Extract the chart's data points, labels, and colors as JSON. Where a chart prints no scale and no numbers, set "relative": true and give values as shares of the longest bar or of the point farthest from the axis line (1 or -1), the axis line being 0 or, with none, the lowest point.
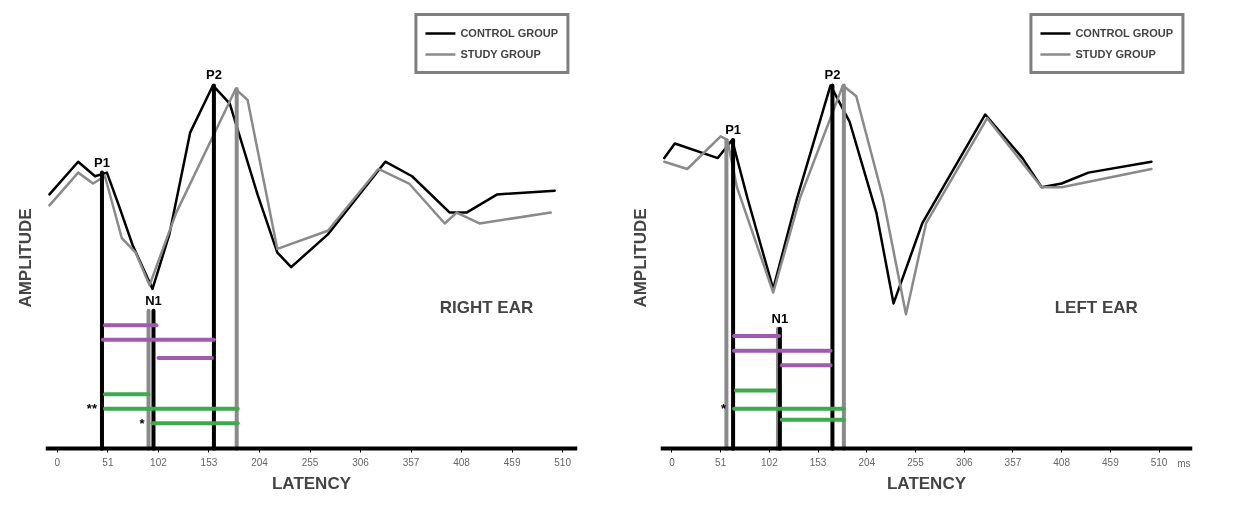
{
  "chart_data": [
    {
      "type": "line",
      "relative": true,
      "title": "RIGHT EAR",
      "xlabel": "LATENCY",
      "ylabel": "AMPLITUDE",
      "legend": "top right",
      "xlim": [
        -12,
        525
      ],
      "xticks": [
        0,
        51,
        102,
        153,
        204,
        255,
        306,
        357,
        408,
        459,
        510
      ],
      "series": [
        {
          "name": "CONTROL GROUP",
          "color": "#000000",
          "x": [
            -8,
            21,
            38,
            50,
            62,
            76,
            96,
            113,
            134,
            157,
            174,
            202,
            222,
            236,
            273,
            331,
            358,
            396,
            413,
            444,
            502
          ],
          "values": [
            0.7,
            0.79,
            0.75,
            0.76,
            0.67,
            0.56,
            0.44,
            0.59,
            0.87,
            1.0,
            0.95,
            0.7,
            0.54,
            0.5,
            0.59,
            0.79,
            0.75,
            0.65,
            0.65,
            0.7,
            0.71
          ]
        },
        {
          "name": "STUDY GROUP",
          "color": "#8a8a8a",
          "x": [
            -8,
            21,
            36,
            48,
            65,
            79,
            93,
            120,
            180,
            192,
            222,
            273,
            324,
            355,
            391,
            403,
            426,
            498
          ],
          "values": [
            0.67,
            0.76,
            0.73,
            0.75,
            0.58,
            0.54,
            0.45,
            0.65,
            0.99,
            0.96,
            0.55,
            0.6,
            0.77,
            0.73,
            0.62,
            0.65,
            0.62,
            0.65
          ]
        },
        {
          "color": "#000000",
          "x": [
            45,
            45
          ],
          "values": [
            0,
            0.76
          ]
        },
        {
          "color": "#8a8a8a",
          "x": [
            92,
            92
          ],
          "values": [
            0,
            0.38
          ]
        },
        {
          "color": "#000000",
          "x": [
            97,
            97
          ],
          "values": [
            0,
            0.38
          ]
        },
        {
          "color": "#000000",
          "x": [
            158,
            158
          ],
          "values": [
            0,
            1.0
          ]
        },
        {
          "color": "#8a8a8a",
          "x": [
            181,
            181
          ],
          "values": [
            0,
            0.99
          ]
        },
        {
          "color": "#a05ab0",
          "x": [
            48,
            100
          ],
          "values": [
            0.34,
            0.34
          ]
        },
        {
          "color": "#a05ab0",
          "x": [
            46,
            158
          ],
          "values": [
            0.3,
            0.3
          ]
        },
        {
          "color": "#a05ab0",
          "x": [
            102,
            156
          ],
          "values": [
            0.25,
            0.25
          ]
        },
        {
          "color": "#3daa50",
          "x": [
            48,
            92
          ],
          "values": [
            0.15,
            0.15
          ]
        },
        {
          "color": "#3daa50",
          "x": [
            48,
            182
          ],
          "values": [
            0.11,
            0.11
          ]
        },
        {
          "color": "#3daa50",
          "x": [
            96,
            182
          ],
          "values": [
            0.07,
            0.07
          ]
        }
      ],
      "annotations": [
        {
          "text": "P1",
          "x": 45,
          "y": 0.76
        },
        {
          "text": "N1",
          "x": 97,
          "y": 0.38
        },
        {
          "text": "P2",
          "x": 158,
          "y": 1.0
        },
        {
          "text": "**",
          "x": 48,
          "y": 0.11
        },
        {
          "text": "*",
          "x": 96,
          "y": 0.07
        }
      ]
    },
    {
      "type": "line",
      "relative": true,
      "title": "LEFT EAR",
      "xlabel": "LATENCY",
      "ylabel": "AMPLITUDE",
      "legend": "top right",
      "xlim": [
        -12,
        545
      ],
      "xticks": [
        0,
        51,
        102,
        153,
        204,
        255,
        306,
        357,
        408,
        459,
        510
      ],
      "series": [
        {
          "name": "CONTROL GROUP",
          "color": "#000000",
          "x": [
            -8,
            3,
            48,
            63,
            79,
            106,
            131,
            166,
            186,
            214,
            232,
            262,
            328,
            367,
            387,
            408,
            436,
            502
          ],
          "values": [
            0.8,
            0.84,
            0.8,
            0.85,
            0.69,
            0.44,
            0.69,
            1.0,
            0.9,
            0.65,
            0.4,
            0.62,
            0.92,
            0.8,
            0.72,
            0.73,
            0.76,
            0.79
          ]
        },
        {
          "name": "STUDY GROUP",
          "color": "#8a8a8a",
          "x": [
            -8,
            16,
            51,
            58,
            68,
            106,
            134,
            179,
            193,
            221,
            245,
            266,
            330,
            387,
            408,
            502
          ],
          "values": [
            0.79,
            0.77,
            0.86,
            0.85,
            0.72,
            0.43,
            0.69,
            1.0,
            0.97,
            0.69,
            0.37,
            0.62,
            0.91,
            0.72,
            0.72,
            0.77
          ]
        },
        {
          "color": "#8a8a8a",
          "x": [
            57,
            57
          ],
          "values": [
            0,
            0.85
          ]
        },
        {
          "color": "#000000",
          "x": [
            64,
            64
          ],
          "values": [
            0,
            0.85
          ]
        },
        {
          "color": "#8a8a8a",
          "x": [
            111,
            111
          ],
          "values": [
            0,
            0.33
          ]
        },
        {
          "color": "#000000",
          "x": [
            113,
            113
          ],
          "values": [
            0,
            0.33
          ]
        },
        {
          "color": "#000000",
          "x": [
            168,
            168
          ],
          "values": [
            0,
            1.0
          ]
        },
        {
          "color": "#8a8a8a",
          "x": [
            180,
            180
          ],
          "values": [
            0,
            1.0
          ]
        },
        {
          "color": "#a05ab0",
          "x": [
            65,
            112
          ],
          "values": [
            0.31,
            0.31
          ]
        },
        {
          "color": "#a05ab0",
          "x": [
            65,
            166
          ],
          "values": [
            0.27,
            0.27
          ]
        },
        {
          "color": "#a05ab0",
          "x": [
            115,
            166
          ],
          "values": [
            0.23,
            0.23
          ]
        },
        {
          "color": "#3daa50",
          "x": [
            67,
            108
          ],
          "values": [
            0.16,
            0.16
          ]
        },
        {
          "color": "#3daa50",
          "x": [
            65,
            180
          ],
          "values": [
            0.11,
            0.11
          ]
        },
        {
          "color": "#3daa50",
          "x": [
            115,
            180
          ],
          "values": [
            0.08,
            0.08
          ]
        }
      ],
      "annotations": [
        {
          "text": "P1",
          "x": 64,
          "y": 0.85
        },
        {
          "text": "N1",
          "x": 113,
          "y": 0.33
        },
        {
          "text": "P2",
          "x": 168,
          "y": 1.0
        },
        {
          "text": "*",
          "x": 65,
          "y": 0.11
        },
        "ms"
      ]
    }
  ]
}
